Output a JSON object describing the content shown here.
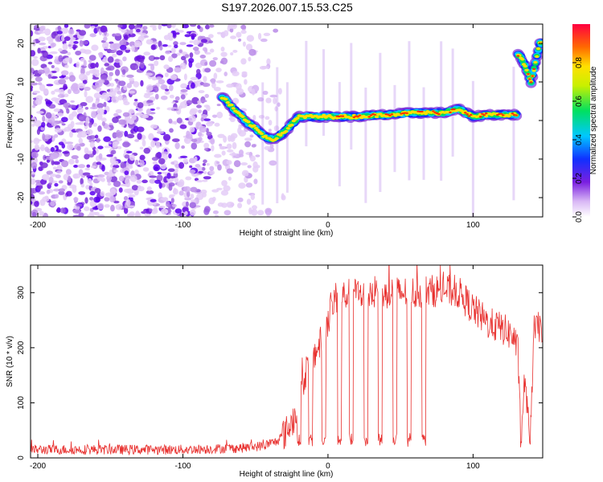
{
  "title": "S197.2026.007.15.53.C25",
  "chart_data": [
    {
      "type": "heatmap",
      "name": "spectrogram",
      "xlabel": "Height of straight line (km)",
      "ylabel": "Frequency (Hz)",
      "xlim": [
        -205,
        148
      ],
      "ylim": [
        -25,
        25
      ],
      "xticks": [
        -200,
        -100,
        0,
        100
      ],
      "yticks": [
        -20,
        -10,
        0,
        10,
        20
      ],
      "colorbar": {
        "label": "Normalized spectral amplitude",
        "range": [
          0,
          1
        ],
        "ticks": [
          "0.0",
          "0.2",
          "0.4",
          "0.6",
          "0.8"
        ]
      },
      "ridge": {
        "description_points_km_hz": [
          [
            -72,
            6
          ],
          [
            -65,
            3
          ],
          [
            -57,
            0
          ],
          [
            -50,
            -2
          ],
          [
            -44,
            -4
          ],
          [
            -38,
            -5
          ],
          [
            -30,
            -3
          ],
          [
            -20,
            1
          ],
          [
            -10,
            1
          ],
          [
            0,
            1
          ],
          [
            20,
            1
          ],
          [
            40,
            1.5
          ],
          [
            60,
            2
          ],
          [
            80,
            2
          ],
          [
            90,
            3
          ],
          [
            100,
            1
          ],
          [
            110,
            1.5
          ],
          [
            128,
            1.5
          ],
          [
            132,
            17
          ],
          [
            136,
            14
          ],
          [
            140,
            10
          ],
          [
            146,
            20
          ]
        ]
      }
    },
    {
      "type": "line",
      "name": "snr",
      "xlabel": "Height of straight line (km)",
      "ylabel": "SNR (10 * v/v)",
      "xlim": [
        -205,
        148
      ],
      "ylim": [
        0,
        350
      ],
      "xticks": [
        -200,
        -100,
        0,
        100
      ],
      "yticks": [
        0,
        100,
        200,
        300
      ],
      "series": [
        {
          "name": "SNR",
          "color": "#e8312f",
          "envelope_km_snr": [
            [
              -205,
              15
            ],
            [
              -150,
              15
            ],
            [
              -100,
              15
            ],
            [
              -60,
              18
            ],
            [
              -45,
              22
            ],
            [
              -35,
              30
            ],
            [
              -28,
              50
            ],
            [
              -22,
              80
            ],
            [
              -15,
              160
            ],
            [
              -5,
              210
            ],
            [
              0,
              250
            ],
            [
              5,
              290
            ],
            [
              20,
              300
            ],
            [
              40,
              300
            ],
            [
              60,
              300
            ],
            [
              80,
              305
            ],
            [
              90,
              300
            ],
            [
              100,
              270
            ],
            [
              110,
              245
            ],
            [
              120,
              235
            ],
            [
              128,
              220
            ],
            [
              131,
              190
            ],
            [
              133,
              20
            ],
            [
              135,
              130
            ],
            [
              137,
              110
            ],
            [
              139,
              20
            ],
            [
              142,
              230
            ],
            [
              148,
              240
            ]
          ],
          "dropouts_km": [
            -20,
            -12,
            -3,
            8,
            16,
            26,
            36,
            46,
            56,
            66
          ]
        }
      ]
    }
  ]
}
